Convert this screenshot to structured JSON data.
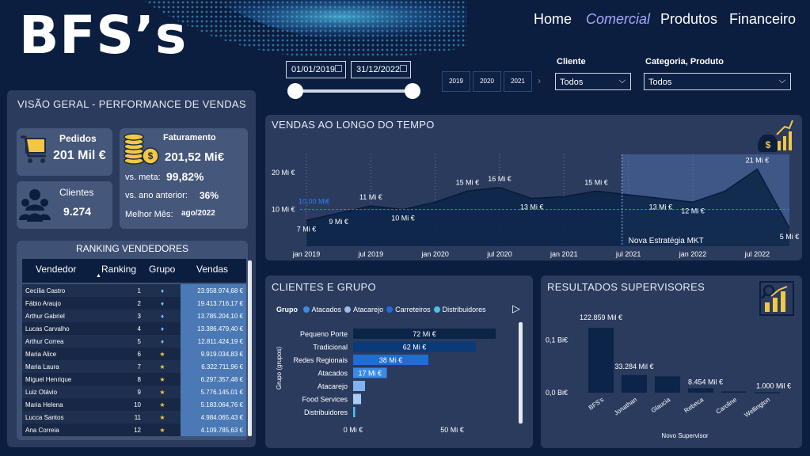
{
  "brand": {
    "logo": "BFS’s"
  },
  "nav": {
    "home": "Home",
    "comercial": "Comercial",
    "produtos": "Produtos",
    "financeiro": "Financeiro"
  },
  "filters": {
    "date_start": "01/01/2019",
    "date_end": "31/12/2022",
    "years": [
      "2019",
      "2020",
      "2021"
    ],
    "cliente_label": "Cliente",
    "cliente_value": "Todos",
    "categoria_label": "Categoria, Produto",
    "categoria_value": "Todos"
  },
  "overview": {
    "title": "VISÃO GERAL - PERFORMANCE DE VENDAS",
    "pedidos_label": "Pedidos",
    "pedidos_value": "201 Mil €",
    "clientes_label": "Clientes",
    "clientes_value": "9.274",
    "faturamento_label": "Faturamento",
    "faturamento_value": "201,52 Mi€",
    "meta_label": "vs. meta:",
    "meta_value": "99,82%",
    "ano_label": "vs. ano anterior:",
    "ano_value": "36%",
    "melhor_label": "Melhor Mês:",
    "melhor_value": "ago/2022"
  },
  "ranking": {
    "title": "RANKING VENDEDORES",
    "headers": {
      "vendedor": "Vendedor",
      "ranking": "Ranking",
      "grupo": "Grupo",
      "vendas": "Vendas"
    },
    "rows": [
      {
        "vendedor": "Cecília Castro",
        "ranking": "1",
        "grupo": "diamond",
        "vendas": "23.958.974,68 €"
      },
      {
        "vendedor": "Fábio Araujo",
        "ranking": "2",
        "grupo": "diamond",
        "vendas": "19.413.716,17 €"
      },
      {
        "vendedor": "Arthur Gabriel",
        "ranking": "3",
        "grupo": "diamond",
        "vendas": "13.785.204,10 €"
      },
      {
        "vendedor": "Lucas Carvalho",
        "ranking": "4",
        "grupo": "diamond",
        "vendas": "13.386.479,40 €"
      },
      {
        "vendedor": "Arthur Correa",
        "ranking": "5",
        "grupo": "diamond",
        "vendas": "12.811.424,19 €"
      },
      {
        "vendedor": "Maria Alice",
        "ranking": "6",
        "grupo": "star",
        "vendas": "9.919.034,83 €"
      },
      {
        "vendedor": "Maria Laura",
        "ranking": "7",
        "grupo": "star",
        "vendas": "6.322.711,96 €"
      },
      {
        "vendedor": "Miguel Henrique",
        "ranking": "8",
        "grupo": "star",
        "vendas": "6.297.357,48 €"
      },
      {
        "vendedor": "Luiz Otávio",
        "ranking": "9",
        "grupo": "star",
        "vendas": "5.776.145,01 €"
      },
      {
        "vendedor": "Maria Helena",
        "ranking": "10",
        "grupo": "star",
        "vendas": "5.183.064,76 €"
      },
      {
        "vendedor": "Lucca Santos",
        "ranking": "11",
        "grupo": "star",
        "vendas": "4.984.065,43 €"
      },
      {
        "vendedor": "Ana Correia",
        "ranking": "12",
        "grupo": "star",
        "vendas": "4.109.785,63 €"
      }
    ]
  },
  "vendas_tempo": {
    "title": "VENDAS AO LONGO DO TEMPO",
    "annotation": "Nova Estratégia MKT",
    "avg_label": "10,00 Mi€"
  },
  "clientes_grupo": {
    "title": "CLIENTES E GRUPO",
    "legend_title": "Grupo",
    "y_axis_title": "Grupo (grupos)"
  },
  "supervisores": {
    "title": "RESULTADOS SUPERVISORES",
    "x_axis_title": "Novo Supervisor"
  },
  "colors": {
    "background": "#0b1e3f",
    "panel": "#2a3b5e",
    "accent_blue": "#1f6fd1",
    "dark_navy": "#0b2447",
    "gold": "#f2c744"
  },
  "chart_data": [
    {
      "type": "area",
      "title": "VENDAS AO LONGO DO TEMPO",
      "x_ticks": [
        "jan 2019",
        "jul 2019",
        "jan 2020",
        "jul 2020",
        "jan 2021",
        "jul 2021",
        "jan 2022",
        "jul 2022"
      ],
      "y_ticks": [
        "10 Mi €",
        "20 Mi €"
      ],
      "ylim": [
        0,
        25
      ],
      "x": [
        "2019-01",
        "2019-04",
        "2019-07",
        "2019-10",
        "2020-01",
        "2020-04",
        "2020-07",
        "2020-10",
        "2021-01",
        "2021-04",
        "2021-07",
        "2021-10",
        "2022-01",
        "2022-04",
        "2022-07",
        "2022-10"
      ],
      "values": [
        7,
        9,
        11,
        10,
        12,
        15,
        16,
        13,
        13.5,
        15,
        14,
        13,
        12,
        15,
        21,
        5
      ],
      "point_labels": [
        "7 Mi €",
        "9 Mi €",
        "11 Mi €",
        "10 Mi €",
        "",
        "15 Mi €",
        "16 Mi €",
        "13 Mi €",
        "",
        "15 Mi €",
        "",
        "13 Mi €",
        "12 Mi €",
        "",
        "21 Mi €",
        "5 Mi €"
      ],
      "average_line": 10,
      "highlight_from": "2021-07"
    },
    {
      "type": "bar",
      "orientation": "horizontal",
      "title": "CLIENTES E GRUPO",
      "categories": [
        "Pequeno Porte",
        "Tradicional",
        "Redes Regionais",
        "Atacados",
        "Atacarejo",
        "Food Services",
        "Distribuidores"
      ],
      "values": [
        72,
        62,
        38,
        17,
        6,
        4,
        1
      ],
      "value_labels": [
        "72 Mi €",
        "62 Mi €",
        "38 Mi €",
        "17 Mi €",
        "",
        "",
        ""
      ],
      "bar_colors": [
        "#0b2447",
        "#0b3a78",
        "#1f6fd1",
        "#3b8ae6",
        "#7fb2f0",
        "#a9cdf6",
        "#4fc0e8"
      ],
      "legend": [
        {
          "name": "Atacados",
          "color": "#3b8ae6"
        },
        {
          "name": "Atacarejo",
          "color": "#9fb9e8"
        },
        {
          "name": "Carreteiros",
          "color": "#1f6fd1"
        },
        {
          "name": "Distribuidores",
          "color": "#4fc0e8"
        }
      ],
      "x_ticks": [
        "0 Mi €",
        "50 Mi €"
      ],
      "xlim": [
        0,
        80
      ],
      "ylabel": "Grupo (grupos)"
    },
    {
      "type": "bar",
      "title": "RESULTADOS SUPERVISORES",
      "categories": [
        "BFS's",
        "Jonathan",
        "Glaucia",
        "Rebeca",
        "Caroline",
        "Wellington"
      ],
      "values": [
        122859,
        33284,
        31000,
        8454,
        2500,
        1000
      ],
      "value_labels": [
        "122.859 Mil €",
        "33.284 Mil €",
        "",
        "8.454 Mil €",
        "",
        "1.000 Mil €"
      ],
      "y_ticks": [
        "0,0 Bi€",
        "0,1 Bi€"
      ],
      "ylim": [
        0,
        150000
      ],
      "xlabel": "Novo Supervisor"
    }
  ]
}
